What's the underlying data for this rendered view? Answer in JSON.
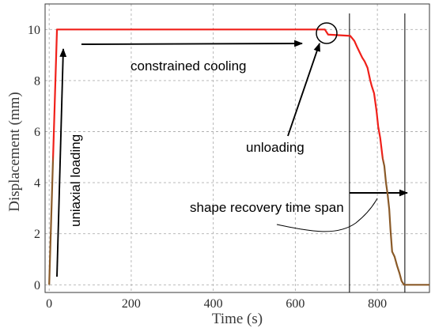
{
  "chart_data": {
    "type": "line",
    "xlabel": "Time (s)",
    "ylabel": "Displacement (mm)",
    "xlim": [
      -10,
      927
    ],
    "ylim": [
      -0.3,
      11
    ],
    "x_ticks": [
      0,
      200,
      400,
      600,
      800
    ],
    "y_ticks": [
      0,
      2,
      4,
      6,
      8,
      10
    ],
    "grid": true,
    "series": [
      {
        "x": [
          0,
          19,
          672,
          680,
          734,
          744,
          751,
          757,
          763,
          769,
          776,
          782,
          786,
          792,
          798,
          802,
          807,
          813,
          817,
          821,
          825,
          829,
          832,
          836,
          842,
          848,
          854,
          859,
          865,
          927
        ],
        "y": [
          0,
          10,
          10,
          9.8,
          9.75,
          9.55,
          9.3,
          9.1,
          8.9,
          8.75,
          8.5,
          8.05,
          7.8,
          7.5,
          6.8,
          6.2,
          5.75,
          4.95,
          4.65,
          4.0,
          3.55,
          2.95,
          2.15,
          1.3,
          1.1,
          0.75,
          0.45,
          0.15,
          0,
          0
        ]
      }
    ],
    "recovery_span": [
      732,
      867
    ],
    "annotations": {
      "uniaxial_loading": "uniaxial loading",
      "constrained_cooling": "constrained cooling",
      "unloading": "unloading",
      "shape_recovery": "shape recovery time span"
    }
  },
  "colors": {
    "line": "#f0201a",
    "line_tail": "#8a5a28",
    "grid": "#b0b0b0"
  }
}
